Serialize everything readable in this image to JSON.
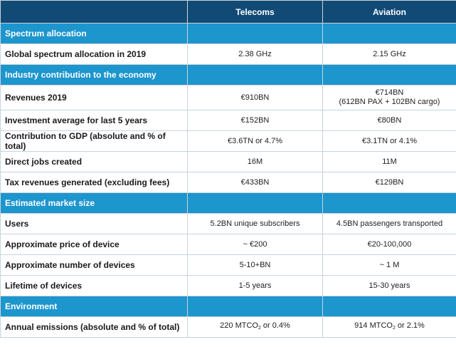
{
  "columns": [
    "",
    "Telecoms",
    "Aviation"
  ],
  "sections": [
    {
      "title": "Spectrum allocation",
      "rows": [
        {
          "label": "Global spectrum allocation in 2019",
          "telecoms": "2.38 GHz",
          "aviation": "2.15 GHz"
        }
      ]
    },
    {
      "title": "Industry contribution to the economy",
      "rows": [
        {
          "label": "Revenues 2019",
          "telecoms": "€910BN",
          "aviation": "€714BN",
          "aviation_sub": "(612BN PAX + 102BN cargo)"
        },
        {
          "label": "Investment average for last 5 years",
          "telecoms": "€152BN",
          "aviation": "€80BN"
        },
        {
          "label": "Contribution to GDP (absolute and % of total)",
          "telecoms": "€3.6TN or 4.7%",
          "aviation": "€3.1TN or 4.1%"
        },
        {
          "label": "Direct jobs created",
          "telecoms": "16M",
          "aviation": "11M"
        },
        {
          "label": "Tax revenues generated (excluding fees)",
          "telecoms": "€433BN",
          "aviation": "€129BN"
        }
      ]
    },
    {
      "title": "Estimated market size",
      "rows": [
        {
          "label": "Users",
          "telecoms": "5.2BN unique subscribers",
          "aviation": "4.5BN passengers transported"
        },
        {
          "label": "Approximate price of device",
          "telecoms": "~ €200",
          "aviation": "€20-100,000"
        },
        {
          "label": "Approximate number of devices",
          "telecoms": "5-10+BN",
          "aviation": "~ 1 M"
        },
        {
          "label": "Lifetime of devices",
          "telecoms": "1-5 years",
          "aviation": "15-30 years"
        }
      ]
    },
    {
      "title": "Environment",
      "rows": [
        {
          "label": "Annual emissions (absolute and % of total)",
          "telecoms_pre": "220 MTCO",
          "telecoms_sub": "2",
          "telecoms_post": " or 0.4%",
          "aviation_pre": "914 MTCO",
          "aviation_sub": "2",
          "aviation_post": " or 2.1%"
        }
      ]
    }
  ]
}
